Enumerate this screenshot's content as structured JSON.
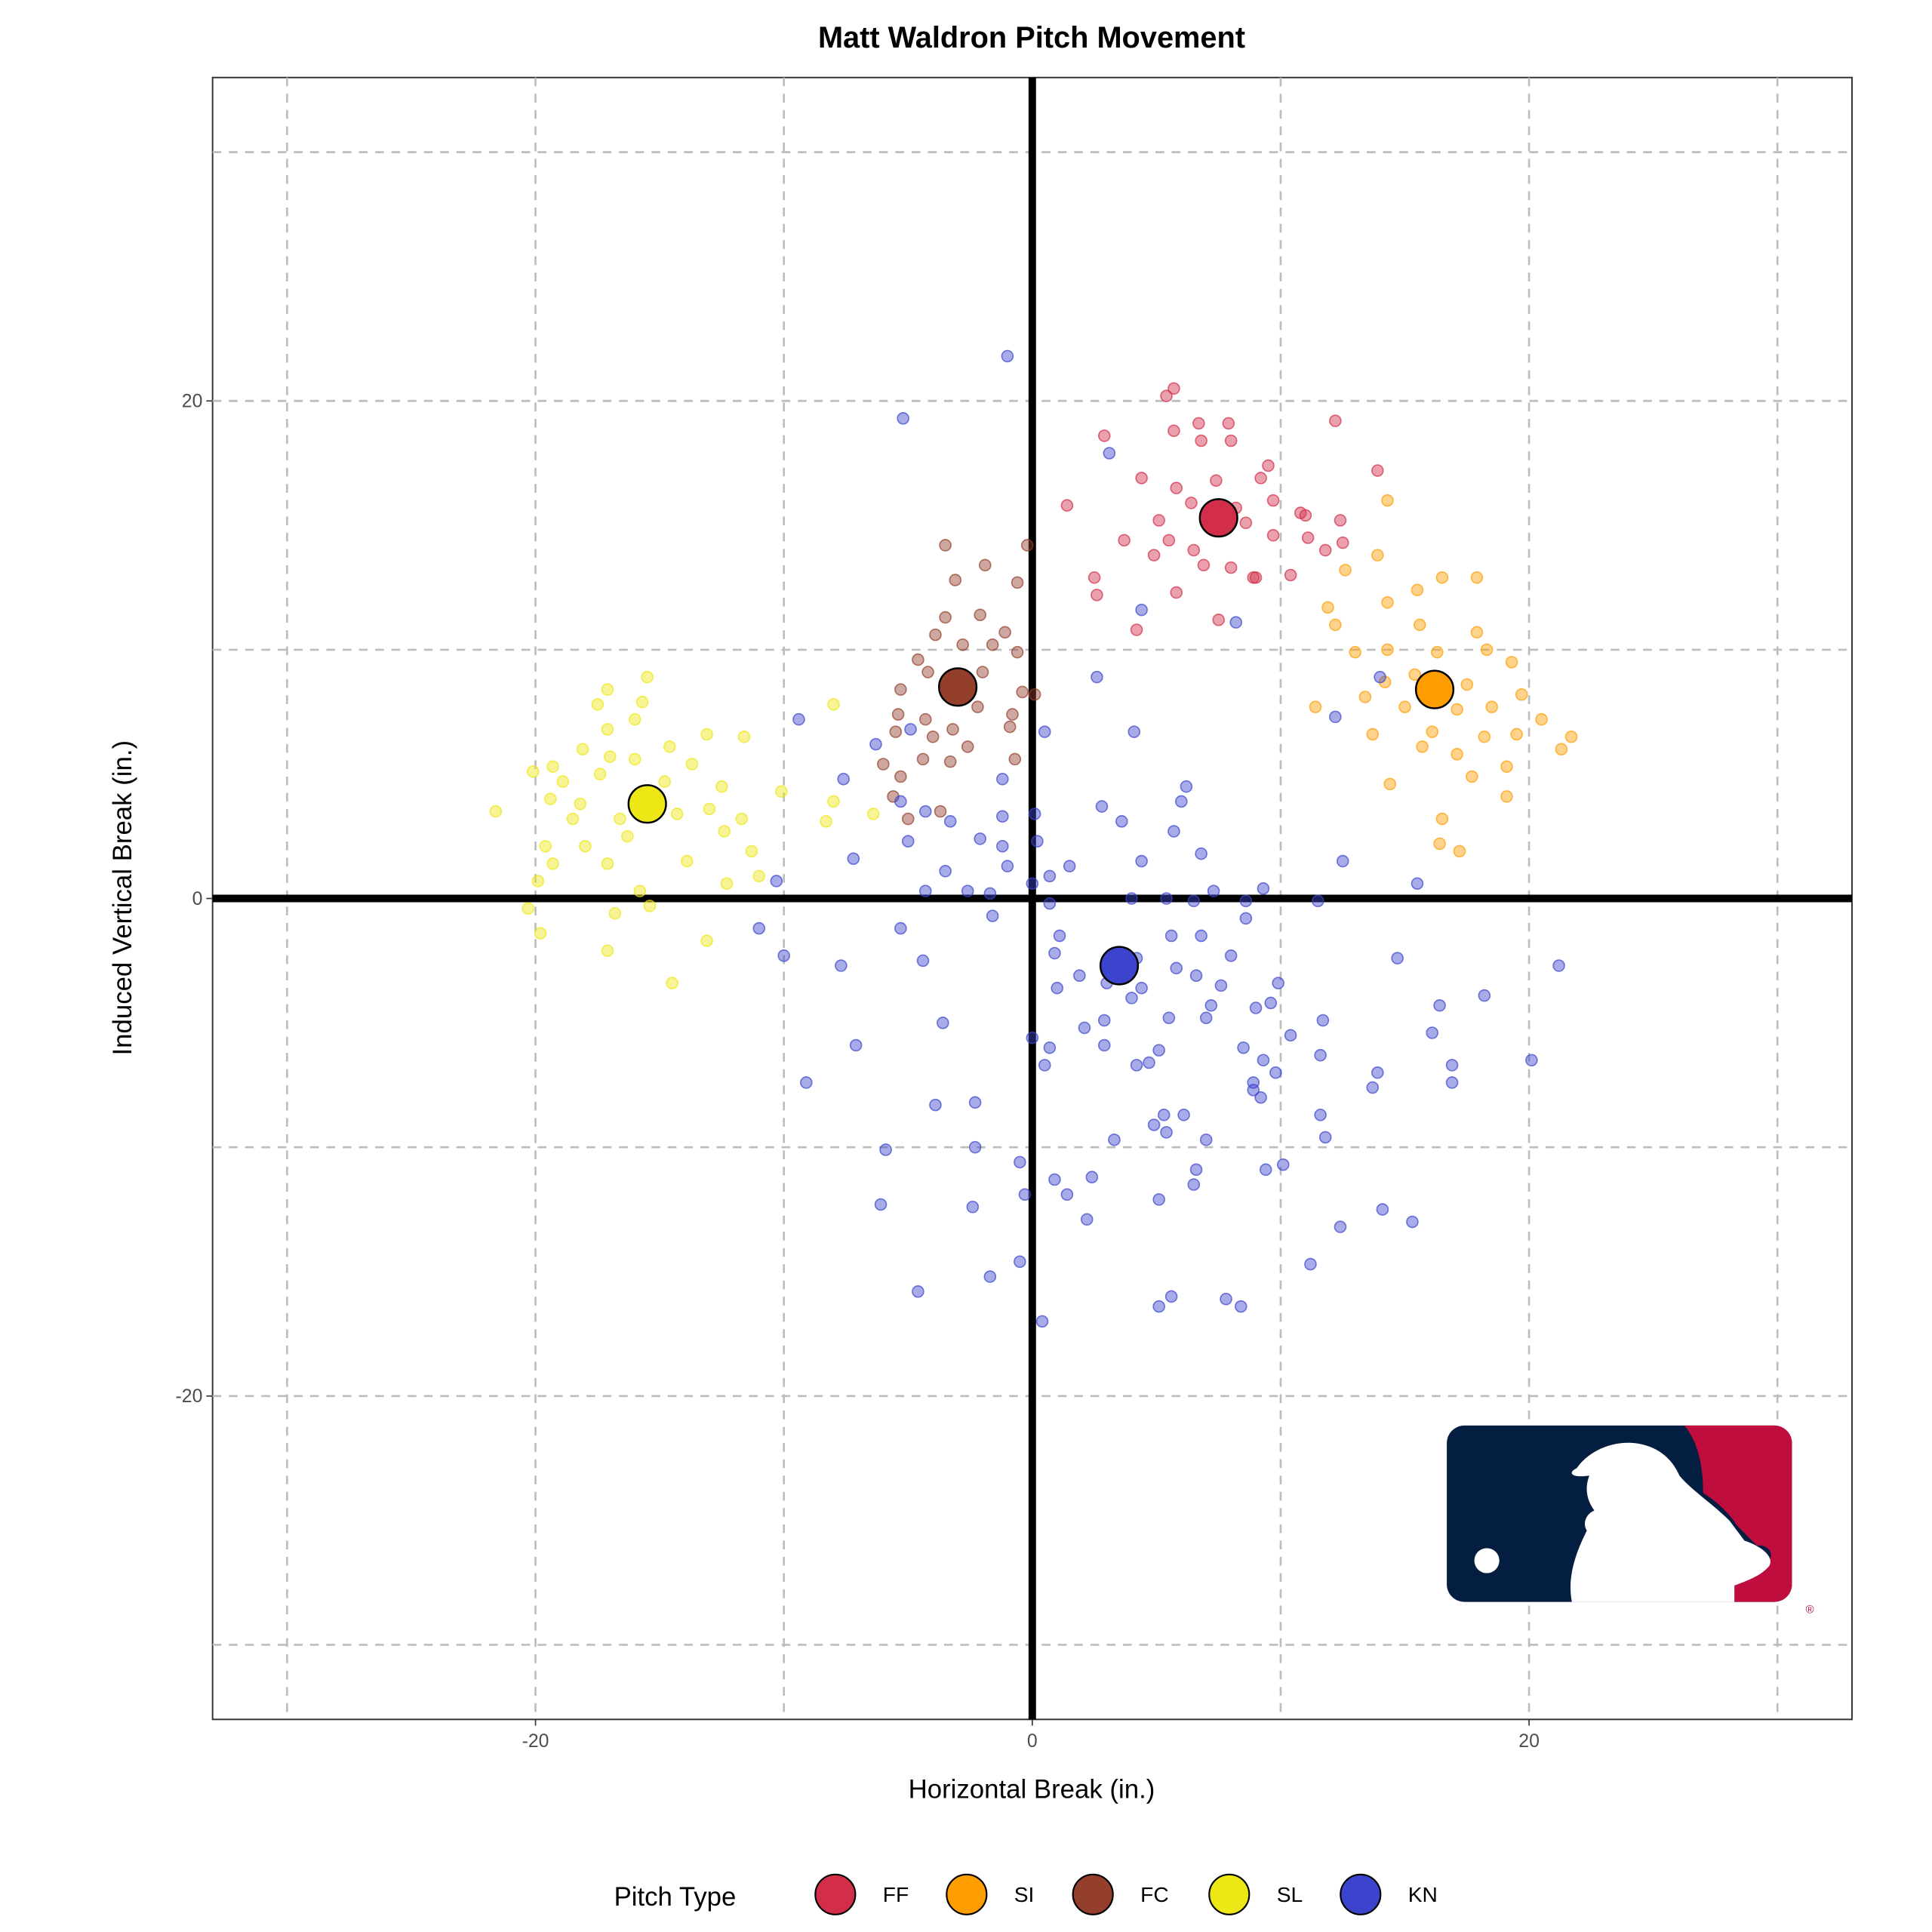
{
  "chart_data": {
    "type": "scatter",
    "title": "Matt Waldron Pitch Movement",
    "xlabel": "Horizontal Break (in.)",
    "ylabel": "Induced Vertical Break (in.)",
    "xlim": [
      -33,
      33
    ],
    "ylim": [
      -33,
      33
    ],
    "xticks": [
      -20,
      0,
      20
    ],
    "yticks": [
      -20,
      0,
      20
    ],
    "grid": true,
    "legend": {
      "title": "Pitch Type",
      "placement": "bottom"
    },
    "series": [
      {
        "name": "FF",
        "color": "#d22d49",
        "mean": [
          7.5,
          15.3
        ],
        "points": [
          [
            5.7,
            20.5
          ],
          [
            5.4,
            20.2
          ],
          [
            12.2,
            19.2
          ],
          [
            6.7,
            19.1
          ],
          [
            7.9,
            19.1
          ],
          [
            2.9,
            18.6
          ],
          [
            5.7,
            18.8
          ],
          [
            6.8,
            18.4
          ],
          [
            8,
            18.4
          ],
          [
            9.5,
            17.4
          ],
          [
            4.4,
            16.9
          ],
          [
            7.4,
            16.8
          ],
          [
            13.9,
            17.2
          ],
          [
            5.8,
            16.5
          ],
          [
            9.2,
            16.9
          ],
          [
            6.4,
            15.9
          ],
          [
            9.7,
            16
          ],
          [
            1.4,
            15.8
          ],
          [
            10.8,
            15.5
          ],
          [
            5.1,
            15.2
          ],
          [
            8.6,
            15.1
          ],
          [
            12.4,
            15.2
          ],
          [
            3.7,
            14.4
          ],
          [
            5.5,
            14.4
          ],
          [
            9.7,
            14.6
          ],
          [
            11.1,
            14.5
          ],
          [
            12.5,
            14.3
          ],
          [
            4.9,
            13.8
          ],
          [
            6.5,
            14
          ],
          [
            6.9,
            13.4
          ],
          [
            8,
            13.3
          ],
          [
            8.9,
            12.9
          ],
          [
            10.4,
            13
          ],
          [
            2.5,
            12.9
          ],
          [
            2.6,
            12.2
          ],
          [
            5.8,
            12.3
          ],
          [
            9,
            12.9
          ],
          [
            7.5,
            11.2
          ],
          [
            4.2,
            10.8
          ],
          [
            11,
            15.4
          ],
          [
            11.8,
            14
          ],
          [
            8.2,
            15.7
          ]
        ]
      },
      {
        "name": "SI",
        "color": "#fe9d00",
        "mean": [
          16.2,
          8.4
        ],
        "points": [
          [
            14.3,
            16
          ],
          [
            13.9,
            13.8
          ],
          [
            12.6,
            13.2
          ],
          [
            15.5,
            12.4
          ],
          [
            16.5,
            12.9
          ],
          [
            17.9,
            12.9
          ],
          [
            11.9,
            11.7
          ],
          [
            14.3,
            11.9
          ],
          [
            12.2,
            11
          ],
          [
            15.6,
            11
          ],
          [
            17.9,
            10.7
          ],
          [
            13,
            9.9
          ],
          [
            14.3,
            10
          ],
          [
            16.3,
            9.9
          ],
          [
            18.3,
            10
          ],
          [
            19.3,
            9.5
          ],
          [
            14.2,
            8.7
          ],
          [
            15.4,
            9
          ],
          [
            17.5,
            8.6
          ],
          [
            19.7,
            8.2
          ],
          [
            13.4,
            8.1
          ],
          [
            15,
            7.7
          ],
          [
            17.1,
            7.6
          ],
          [
            18.5,
            7.7
          ],
          [
            20.5,
            7.2
          ],
          [
            11.4,
            7.7
          ],
          [
            13.7,
            6.6
          ],
          [
            16.1,
            6.7
          ],
          [
            18.2,
            6.5
          ],
          [
            19.5,
            6.6
          ],
          [
            21.7,
            6.5
          ],
          [
            21.3,
            6
          ],
          [
            15.7,
            6.1
          ],
          [
            17.1,
            5.8
          ],
          [
            19.1,
            5.3
          ],
          [
            17.7,
            4.9
          ],
          [
            14.4,
            4.6
          ],
          [
            19.1,
            4.1
          ],
          [
            16.5,
            3.2
          ],
          [
            16.4,
            2.2
          ],
          [
            17.2,
            1.9
          ]
        ]
      },
      {
        "name": "FC",
        "color": "#933f2c",
        "mean": [
          -3.0,
          8.5
        ],
        "points": [
          [
            -3.5,
            14.2
          ],
          [
            -0.2,
            14.2
          ],
          [
            -3.1,
            12.8
          ],
          [
            -1.9,
            13.4
          ],
          [
            -0.6,
            12.7
          ],
          [
            -3.5,
            11.3
          ],
          [
            -2.1,
            11.4
          ],
          [
            -3.9,
            10.6
          ],
          [
            -1.1,
            10.7
          ],
          [
            -2.8,
            10.2
          ],
          [
            -1.6,
            10.2
          ],
          [
            -0.6,
            9.9
          ],
          [
            -4.6,
            9.6
          ],
          [
            -2,
            9.1
          ],
          [
            -4.2,
            9.1
          ],
          [
            -0.4,
            8.3
          ],
          [
            0.1,
            8.2
          ],
          [
            -5.3,
            8.4
          ],
          [
            -2.2,
            7.7
          ],
          [
            -5.4,
            7.4
          ],
          [
            -0.8,
            7.4
          ],
          [
            -4.3,
            7.2
          ],
          [
            -3.2,
            6.8
          ],
          [
            -5.5,
            6.7
          ],
          [
            -4,
            6.5
          ],
          [
            -2.6,
            6.1
          ],
          [
            -0.7,
            5.6
          ],
          [
            -6,
            5.4
          ],
          [
            -4.4,
            5.6
          ],
          [
            -3.3,
            5.5
          ],
          [
            -5.3,
            4.9
          ],
          [
            -5.6,
            4.1
          ],
          [
            -3.7,
            3.5
          ],
          [
            -5,
            3.2
          ],
          [
            -0.9,
            6.9
          ]
        ]
      },
      {
        "name": "SL",
        "color": "#eee716",
        "mean": [
          -15.5,
          3.8
        ],
        "points": [
          [
            -15.5,
            8.9
          ],
          [
            -17.1,
            8.4
          ],
          [
            -15.7,
            7.9
          ],
          [
            -17.5,
            7.8
          ],
          [
            -16,
            7.2
          ],
          [
            -17.1,
            6.8
          ],
          [
            -8,
            7.8
          ],
          [
            -11.6,
            6.5
          ],
          [
            -13.1,
            6.6
          ],
          [
            -14.6,
            6.1
          ],
          [
            -18.1,
            6
          ],
          [
            -17,
            5.7
          ],
          [
            -20.1,
            5.1
          ],
          [
            -19.3,
            5.3
          ],
          [
            -16,
            5.6
          ],
          [
            -13.7,
            5.4
          ],
          [
            -18.9,
            4.7
          ],
          [
            -17.4,
            5
          ],
          [
            -14.8,
            4.7
          ],
          [
            -12.5,
            4.5
          ],
          [
            -10.1,
            4.3
          ],
          [
            -8,
            3.9
          ],
          [
            -19.4,
            4
          ],
          [
            -18.2,
            3.8
          ],
          [
            -16.6,
            3.2
          ],
          [
            -14.3,
            3.4
          ],
          [
            -13,
            3.6
          ],
          [
            -11.7,
            3.2
          ],
          [
            -21.6,
            3.5
          ],
          [
            -18.5,
            3.2
          ],
          [
            -12.4,
            2.7
          ],
          [
            -8.3,
            3.1
          ],
          [
            -6.4,
            3.4
          ],
          [
            -19.6,
            2.1
          ],
          [
            -18,
            2.1
          ],
          [
            -16.3,
            2.5
          ],
          [
            -13.9,
            1.5
          ],
          [
            -11.3,
            1.9
          ],
          [
            -19.3,
            1.4
          ],
          [
            -17.1,
            1.4
          ],
          [
            -19.9,
            0.7
          ],
          [
            -11,
            0.9
          ],
          [
            -12.3,
            0.6
          ],
          [
            -15.8,
            0.3
          ],
          [
            -15.4,
            -0.3
          ],
          [
            -20.3,
            -0.4
          ],
          [
            -16.8,
            -0.6
          ],
          [
            -19.8,
            -1.4
          ],
          [
            -13.1,
            -1.7
          ],
          [
            -17.1,
            -2.1
          ],
          [
            -14.5,
            -3.4
          ]
        ]
      },
      {
        "name": "KN",
        "color": "#3c44cd",
        "mean": [
          3.5,
          -2.7
        ],
        "points": [
          [
            -1,
            21.8
          ],
          [
            -5.2,
            19.3
          ],
          [
            3.1,
            17.9
          ],
          [
            4.4,
            11.6
          ],
          [
            8.2,
            11.1
          ],
          [
            2.6,
            8.9
          ],
          [
            14,
            8.9
          ],
          [
            12.2,
            7.3
          ],
          [
            4.1,
            6.7
          ],
          [
            0.5,
            6.7
          ],
          [
            -9.4,
            7.2
          ],
          [
            -6.3,
            6.2
          ],
          [
            -4.9,
            6.8
          ],
          [
            -7.6,
            4.8
          ],
          [
            -1.2,
            4.8
          ],
          [
            6.2,
            4.5
          ],
          [
            6,
            3.9
          ],
          [
            -5.3,
            3.9
          ],
          [
            -4.3,
            3.5
          ],
          [
            -3.3,
            3.1
          ],
          [
            -1.2,
            3.3
          ],
          [
            0.1,
            3.4
          ],
          [
            2.8,
            3.7
          ],
          [
            3.6,
            3.1
          ],
          [
            5.7,
            2.7
          ],
          [
            -2.1,
            2.4
          ],
          [
            0.2,
            2.3
          ],
          [
            -7.2,
            1.6
          ],
          [
            -5,
            2.3
          ],
          [
            -1.2,
            2.1
          ],
          [
            -3.5,
            1.1
          ],
          [
            -1,
            1.3
          ],
          [
            1.5,
            1.3
          ],
          [
            4.4,
            1.5
          ],
          [
            6.8,
            1.8
          ],
          [
            12.5,
            1.5
          ],
          [
            15.5,
            0.6
          ],
          [
            -10.3,
            0.7
          ],
          [
            -4.3,
            0.3
          ],
          [
            -2.6,
            0.3
          ],
          [
            -1.7,
            0.2
          ],
          [
            0,
            0.6
          ],
          [
            0.7,
            0.9
          ],
          [
            4,
            0
          ],
          [
            5.4,
            0
          ],
          [
            6.5,
            -0.1
          ],
          [
            7.3,
            0.3
          ],
          [
            8.6,
            -0.1
          ],
          [
            9.3,
            0.4
          ],
          [
            11.5,
            -0.1
          ],
          [
            0.7,
            -0.2
          ],
          [
            -1.6,
            -0.7
          ],
          [
            -11,
            -1.2
          ],
          [
            -5.3,
            -1.2
          ],
          [
            1.1,
            -1.5
          ],
          [
            5.6,
            -1.5
          ],
          [
            6.8,
            -1.5
          ],
          [
            8.6,
            -0.8
          ],
          [
            -10,
            -2.3
          ],
          [
            -4.4,
            -2.5
          ],
          [
            -7.7,
            -2.7
          ],
          [
            0.9,
            -2.2
          ],
          [
            4.2,
            -2.4
          ],
          [
            5.8,
            -2.8
          ],
          [
            8,
            -2.3
          ],
          [
            9.9,
            -3.4
          ],
          [
            14.7,
            -2.4
          ],
          [
            21.2,
            -2.7
          ],
          [
            1.9,
            -3.1
          ],
          [
            3,
            -3.4
          ],
          [
            4.4,
            -3.6
          ],
          [
            6.6,
            -3.1
          ],
          [
            7.6,
            -3.5
          ],
          [
            1,
            -3.6
          ],
          [
            4,
            -4
          ],
          [
            18.2,
            -3.9
          ],
          [
            16.4,
            -4.3
          ],
          [
            9.6,
            -4.2
          ],
          [
            9,
            -4.4
          ],
          [
            7.2,
            -4.3
          ],
          [
            5.5,
            -4.8
          ],
          [
            2.9,
            -4.9
          ],
          [
            7,
            -4.8
          ],
          [
            11.7,
            -4.9
          ],
          [
            -3.6,
            -5
          ],
          [
            2.1,
            -5.2
          ],
          [
            10.4,
            -5.5
          ],
          [
            16.1,
            -5.4
          ],
          [
            0,
            -5.6
          ],
          [
            0.7,
            -6
          ],
          [
            2.9,
            -5.9
          ],
          [
            5.1,
            -6.1
          ],
          [
            8.5,
            -6
          ],
          [
            -7.1,
            -5.9
          ],
          [
            9.3,
            -6.5
          ],
          [
            11.6,
            -6.3
          ],
          [
            20.1,
            -6.5
          ],
          [
            0.5,
            -6.7
          ],
          [
            4.2,
            -6.7
          ],
          [
            4.7,
            -6.6
          ],
          [
            9.8,
            -7
          ],
          [
            16.9,
            -6.7
          ],
          [
            13.9,
            -7
          ],
          [
            -9.1,
            -7.4
          ],
          [
            8.9,
            -7.4
          ],
          [
            16.9,
            -7.4
          ],
          [
            13.7,
            -7.6
          ],
          [
            8.9,
            -7.7
          ],
          [
            9.2,
            -8
          ],
          [
            -3.9,
            -8.3
          ],
          [
            -2.3,
            -8.2
          ],
          [
            5.3,
            -8.7
          ],
          [
            6.1,
            -8.7
          ],
          [
            11.6,
            -8.7
          ],
          [
            4.9,
            -9.1
          ],
          [
            5.4,
            -9.4
          ],
          [
            3.3,
            -9.7
          ],
          [
            11.8,
            -9.6
          ],
          [
            7,
            -9.7
          ],
          [
            -5.9,
            -10.1
          ],
          [
            -2.3,
            -10
          ],
          [
            -0.5,
            -10.6
          ],
          [
            10.1,
            -10.7
          ],
          [
            2.4,
            -11.2
          ],
          [
            0.9,
            -11.3
          ],
          [
            6.6,
            -10.9
          ],
          [
            9.4,
            -10.9
          ],
          [
            6.5,
            -11.5
          ],
          [
            -0.3,
            -11.9
          ],
          [
            1.4,
            -11.9
          ],
          [
            5.1,
            -12.1
          ],
          [
            -6.1,
            -12.3
          ],
          [
            -2.4,
            -12.4
          ],
          [
            14.1,
            -12.5
          ],
          [
            2.2,
            -12.9
          ],
          [
            15.3,
            -13
          ],
          [
            12.4,
            -13.2
          ],
          [
            -0.5,
            -14.6
          ],
          [
            11.2,
            -14.7
          ],
          [
            -1.7,
            -15.2
          ],
          [
            -4.6,
            -15.8
          ],
          [
            5.6,
            -16
          ],
          [
            5.1,
            -16.4
          ],
          [
            7.8,
            -16.1
          ],
          [
            8.4,
            -16.4
          ],
          [
            0.4,
            -17
          ]
        ]
      }
    ],
    "logo": "MLB"
  }
}
